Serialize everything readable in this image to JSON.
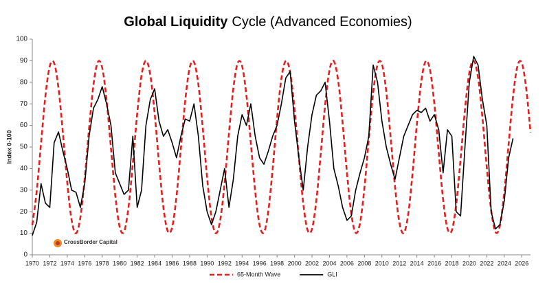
{
  "chart_data": {
    "type": "line",
    "title": [
      "Global Liquidity",
      "Cycle (Advanced Economies)"
    ],
    "y_label": "Index 0-100",
    "logo": "CrossBorder Capital",
    "legend": "bottom",
    "grid": false,
    "xlim": [
      1970,
      2027
    ],
    "ylim": [
      0,
      100
    ],
    "xticks": [
      1970,
      1972,
      1974,
      1976,
      1978,
      1980,
      1982,
      1984,
      1986,
      1988,
      1990,
      1992,
      1994,
      1996,
      1998,
      2000,
      2002,
      2004,
      2006,
      2008,
      2010,
      2012,
      2014,
      2016,
      2018,
      2020,
      2022,
      2024,
      2026
    ],
    "yticks": [
      0,
      10,
      20,
      30,
      40,
      50,
      60,
      70,
      80,
      90,
      100
    ],
    "x": [
      1970,
      1970.5,
      1971,
      1971.5,
      1972,
      1972.5,
      1973,
      1973.5,
      1974,
      1974.5,
      1975,
      1975.5,
      1976,
      1976.5,
      1977,
      1977.5,
      1978,
      1978.5,
      1979,
      1979.5,
      1980,
      1980.5,
      1981,
      1981.5,
      1982,
      1982.5,
      1983,
      1983.5,
      1984,
      1984.5,
      1985,
      1985.5,
      1986,
      1986.5,
      1987,
      1987.5,
      1988,
      1988.5,
      1989,
      1989.5,
      1990,
      1990.5,
      1991,
      1991.5,
      1992,
      1992.5,
      1993,
      1993.5,
      1994,
      1994.5,
      1995,
      1995.5,
      1996,
      1996.5,
      1997,
      1997.5,
      1998,
      1998.5,
      1999,
      1999.5,
      2000,
      2000.5,
      2001,
      2001.5,
      2002,
      2002.5,
      2003,
      2003.5,
      2004,
      2004.5,
      2005,
      2005.5,
      2006,
      2006.5,
      2007,
      2007.5,
      2008,
      2008.5,
      2009,
      2009.5,
      2010,
      2010.5,
      2011,
      2011.5,
      2012,
      2012.5,
      2013,
      2013.5,
      2014,
      2014.5,
      2015,
      2015.5,
      2016,
      2016.5,
      2017,
      2017.5,
      2018,
      2018.5,
      2019,
      2019.5,
      2020,
      2020.5,
      2021,
      2021.5,
      2022,
      2022.5,
      2023,
      2023.5,
      2024,
      2024.5,
      2025,
      2025.5,
      2026,
      2026.5,
      2027
    ],
    "series": [
      {
        "name": "65-Month Wave",
        "color": "#e41e1e",
        "dashed": true,
        "smooth": true,
        "values": [
          13.8,
          29.3,
          51.7,
          73.6,
          87.5,
          88.9,
          77.2,
          56.5,
          33.5,
          16.1,
          10.0,
          17.3,
          35.6,
          58.7,
          78.9,
          89.4,
          86.7,
          71.7,
          49.5,
          27.4,
          12.9,
          10.8,
          21.8,
          42.3,
          65.3,
          83.2,
          90.0,
          83.4,
          65.6,
          42.5,
          22.0,
          10.9,
          12.8,
          27.2,
          49.3,
          71.6,
          86.6,
          89.4,
          79.0,
          58.9,
          35.8,
          17.4,
          10.0,
          16.0,
          33.3,
          56.3,
          77.1,
          88.9,
          87.6,
          73.8,
          52.0,
          29.5,
          13.9,
          10.4,
          20.2,
          39.9,
          63.0,
          81.8,
          89.9,
          84.6,
          67.8,
          45.0,
          23.8,
          11.4,
          12.0,
          25.3,
          46.8,
          69.4,
          85.6,
          89.8,
          80.6,
          61.3,
          38.1,
          19.0,
          10.2,
          14.8,
          31.1,
          53.8,
          75.2,
          88.2,
          88.4,
          75.7,
          54.4,
          31.6,
          15.0,
          10.1,
          18.6,
          37.6,
          60.7,
          80.2,
          89.7,
          85.8,
          70.0,
          47.4,
          25.7,
          12.2,
          11.3,
          23.4,
          44.4,
          67.2,
          84.4,
          90.0,
          82.2,
          63.6,
          40.5,
          20.6,
          10.5,
          13.6,
          29.0,
          51.4,
          73.3,
          87.4,
          89.0,
          77.5,
          56.8
        ]
      },
      {
        "name": "GLI",
        "color": "#000000",
        "dashed": false,
        "smooth": false,
        "values": [
          9,
          15,
          33,
          24,
          22,
          52,
          57,
          48,
          40,
          30,
          29,
          22,
          33,
          55,
          68,
          72,
          78,
          70,
          60,
          38,
          33,
          28,
          30,
          55,
          22,
          30,
          60,
          72,
          77,
          62,
          55,
          58,
          52,
          45,
          55,
          63,
          62,
          70,
          55,
          32,
          20,
          14,
          20,
          30,
          40,
          22,
          35,
          55,
          65,
          60,
          70,
          55,
          45,
          42,
          48,
          55,
          60,
          70,
          82,
          85,
          62,
          45,
          30,
          50,
          65,
          74,
          76,
          80,
          62,
          40,
          32,
          22,
          16,
          18,
          30,
          38,
          45,
          55,
          88,
          80,
          62,
          50,
          42,
          35,
          45,
          55,
          60,
          65,
          67,
          66,
          68,
          62,
          65,
          58,
          38,
          58,
          55,
          20,
          18,
          50,
          80,
          92,
          88,
          72,
          60,
          20,
          12,
          14,
          25,
          45,
          54,
          null,
          null,
          null,
          null
        ]
      }
    ]
  }
}
